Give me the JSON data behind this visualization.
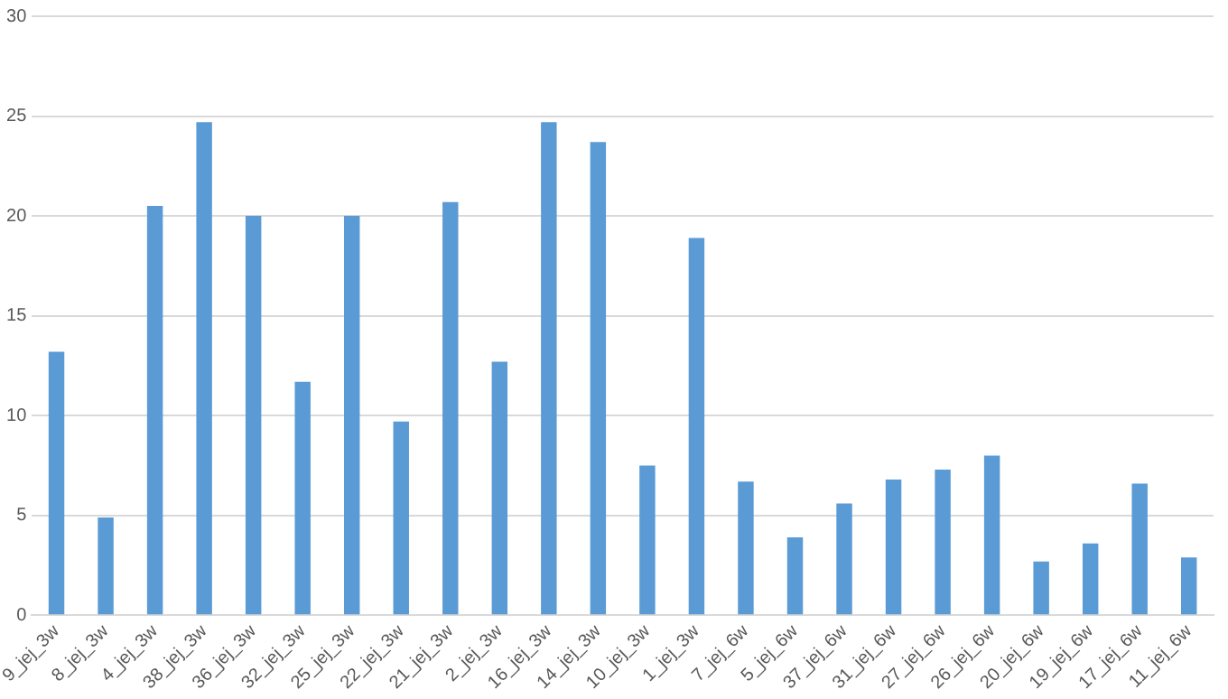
{
  "chart_data": {
    "type": "bar",
    "categories": [
      "9_jej_3w",
      "8_jej_3w",
      "4_jej_3w",
      "38_jej_3w",
      "36_jej_3w",
      "32_jej_3w",
      "25_jej_3w",
      "22_jej_3w",
      "21_jej_3w",
      "2_jej_3w",
      "16_jej_3w",
      "14_jej_3w",
      "10_jej_3w",
      "1_jej_3w",
      "7_jej_6w",
      "5_jej_6w",
      "37_jej_6w",
      "31_jej_6w",
      "27_jej_6w",
      "26_jej_6w",
      "20_jej_6w",
      "19_jej_6w",
      "17_jej_6w",
      "11_jej_6w"
    ],
    "values": [
      13.2,
      4.9,
      20.5,
      24.7,
      20.0,
      11.7,
      20.0,
      9.7,
      20.7,
      12.7,
      24.7,
      23.7,
      7.5,
      18.9,
      6.7,
      3.9,
      5.6,
      6.8,
      7.3,
      8.0,
      2.7,
      3.6,
      6.6,
      2.9
    ],
    "color": "#5b9bd5",
    "ylim": [
      0,
      30
    ],
    "yticks": [
      0,
      5,
      10,
      15,
      20,
      25,
      30
    ],
    "grid": "y"
  }
}
